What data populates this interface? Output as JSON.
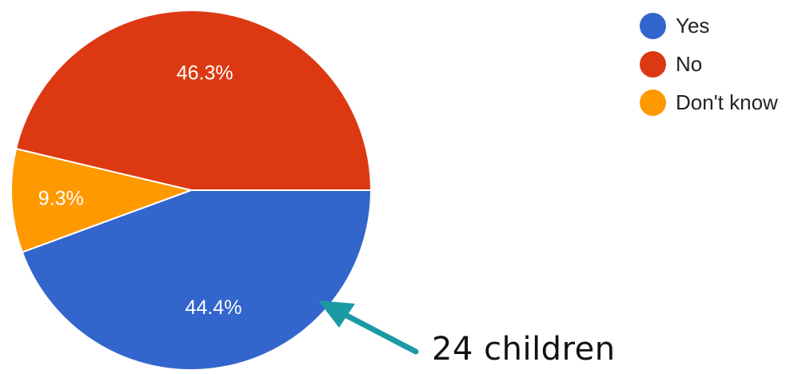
{
  "chart_data": {
    "type": "pie",
    "slices": [
      {
        "label": "Yes",
        "value": 44.4,
        "display": "44.4%",
        "color": "#3366cc"
      },
      {
        "label": "No",
        "value": 46.3,
        "display": "46.3%",
        "color": "#dc3912"
      },
      {
        "label": "Don't know",
        "value": 9.3,
        "display": "9.3%",
        "color": "#ff9900"
      }
    ],
    "legend_position": "top-right",
    "annotation": {
      "text": "24 children",
      "points_to": "Yes",
      "arrow_color": "#1b9aa6"
    }
  }
}
